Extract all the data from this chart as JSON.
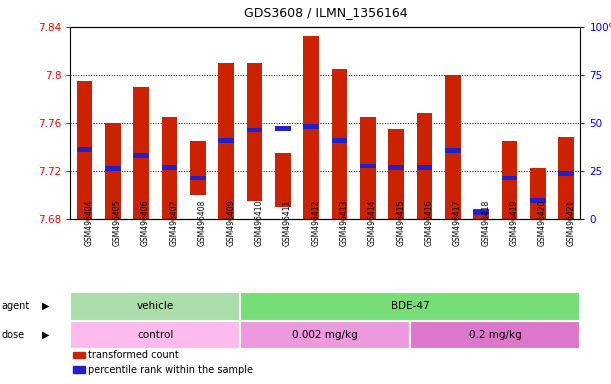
{
  "title": "GDS3608 / ILMN_1356164",
  "samples": [
    "GSM496404",
    "GSM496405",
    "GSM496406",
    "GSM496407",
    "GSM496408",
    "GSM496409",
    "GSM496410",
    "GSM496411",
    "GSM496412",
    "GSM496413",
    "GSM496414",
    "GSM496415",
    "GSM496416",
    "GSM496417",
    "GSM496418",
    "GSM496419",
    "GSM496420",
    "GSM496421"
  ],
  "bar_top": [
    7.795,
    7.76,
    7.79,
    7.765,
    7.745,
    7.81,
    7.81,
    7.735,
    7.832,
    7.805,
    7.765,
    7.755,
    7.768,
    7.8,
    7.688,
    7.745,
    7.722,
    7.748
  ],
  "bar_bottom": [
    7.68,
    7.68,
    7.68,
    7.68,
    7.7,
    7.68,
    7.695,
    7.69,
    7.68,
    7.68,
    7.68,
    7.68,
    7.68,
    7.68,
    7.68,
    7.68,
    7.68,
    7.68
  ],
  "percentile_val": [
    7.738,
    7.722,
    7.733,
    7.723,
    7.714,
    7.745,
    7.754,
    7.755,
    7.757,
    7.745,
    7.724,
    7.723,
    7.723,
    7.737,
    7.685,
    7.714,
    7.695,
    7.718
  ],
  "ylim": [
    7.68,
    7.84
  ],
  "yticks_left": [
    7.68,
    7.72,
    7.76,
    7.8,
    7.84
  ],
  "yticks_right": [
    0,
    25,
    50,
    75,
    100
  ],
  "bar_color": "#cc2200",
  "percentile_color": "#2222cc",
  "agent_groups": [
    {
      "label": "vehicle",
      "start": 0,
      "end": 6,
      "color": "#aaddaa"
    },
    {
      "label": "BDE-47",
      "start": 6,
      "end": 18,
      "color": "#77dd77"
    }
  ],
  "dose_groups": [
    {
      "label": "control",
      "start": 0,
      "end": 6,
      "color": "#ffbbee"
    },
    {
      "label": "0.002 mg/kg",
      "start": 6,
      "end": 12,
      "color": "#ee99dd"
    },
    {
      "label": "0.2 mg/kg",
      "start": 12,
      "end": 18,
      "color": "#dd77cc"
    }
  ],
  "legend_red_label": "transformed count",
  "legend_blue_label": "percentile rank within the sample",
  "bar_width": 0.55
}
